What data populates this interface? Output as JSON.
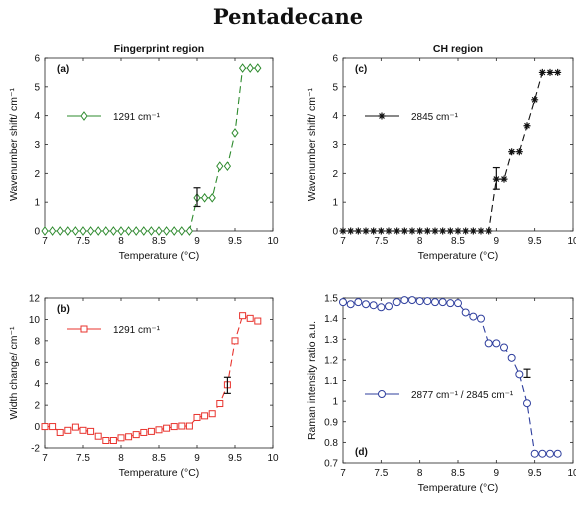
{
  "figure_title": "Pentadecane",
  "chart_data": [
    {
      "id": "a",
      "type": "line",
      "panel_label": "(a)",
      "title": "Fingerprint region",
      "xlabel": "Temperature (°C)",
      "ylabel": "Wavenumber shift/ cm⁻¹",
      "xlim": [
        7,
        10
      ],
      "ylim": [
        0,
        6
      ],
      "xticks": [
        7,
        7.5,
        8,
        8.5,
        9,
        9.5,
        10
      ],
      "xticklabels": [
        "7",
        "7.5",
        "8",
        "8.5",
        "9",
        "9.5",
        "10"
      ],
      "yticks": [
        0,
        1,
        2,
        3,
        4,
        5,
        6
      ],
      "yticklabels": [
        "0",
        "1",
        "2",
        "3",
        "4",
        "5",
        "6"
      ],
      "grid": false,
      "legend_position": "upper-left",
      "color": "#2e8b2e",
      "marker": "diamond",
      "series": [
        {
          "name": "1291 cm⁻¹",
          "x": [
            7.0,
            7.1,
            7.2,
            7.3,
            7.4,
            7.5,
            7.6,
            7.7,
            7.8,
            7.9,
            8.0,
            8.1,
            8.2,
            8.3,
            8.4,
            8.5,
            8.6,
            8.7,
            8.8,
            8.9,
            9.0,
            9.1,
            9.2,
            9.3,
            9.4,
            9.5,
            9.6,
            9.7,
            9.8
          ],
          "y": [
            0,
            0,
            0,
            0,
            0,
            0,
            0,
            0,
            0,
            0,
            0,
            0,
            0,
            0,
            0,
            0,
            0,
            0,
            0,
            0,
            1.15,
            1.15,
            1.15,
            2.25,
            2.25,
            3.4,
            5.65,
            5.65,
            5.65
          ]
        }
      ],
      "error_bar": {
        "x": 9.0,
        "low": 0.85,
        "high": 1.5
      }
    },
    {
      "id": "c",
      "type": "line",
      "panel_label": "(c)",
      "title": "CH region",
      "xlabel": "Temperature (°C)",
      "ylabel": "Wavenumber shift/ cm⁻¹",
      "xlim": [
        7,
        10
      ],
      "ylim": [
        0,
        6
      ],
      "xticks": [
        7,
        7.5,
        8,
        8.5,
        9,
        9.5,
        10
      ],
      "xticklabels": [
        "7",
        "7.5",
        "8",
        "8.5",
        "9",
        "9.5",
        "10"
      ],
      "yticks": [
        0,
        1,
        2,
        3,
        4,
        5,
        6
      ],
      "yticklabels": [
        "0",
        "1",
        "2",
        "3",
        "4",
        "5",
        "6"
      ],
      "grid": false,
      "legend_position": "upper-left",
      "color": "#111111",
      "marker": "asterisk",
      "series": [
        {
          "name": "2845 cm⁻¹",
          "x": [
            7.0,
            7.1,
            7.2,
            7.3,
            7.4,
            7.5,
            7.6,
            7.7,
            7.8,
            7.9,
            8.0,
            8.1,
            8.2,
            8.3,
            8.4,
            8.5,
            8.6,
            8.7,
            8.8,
            8.9,
            9.0,
            9.1,
            9.2,
            9.3,
            9.4,
            9.5,
            9.6,
            9.7,
            9.8
          ],
          "y": [
            0,
            0,
            0,
            0,
            0,
            0,
            0,
            0,
            0,
            0,
            0,
            0,
            0,
            0,
            0,
            0,
            0,
            0,
            0,
            0,
            1.8,
            1.8,
            2.75,
            2.75,
            3.65,
            4.55,
            5.5,
            5.5,
            5.5
          ]
        }
      ],
      "error_bar": {
        "x": 9.0,
        "low": 1.45,
        "high": 2.2
      }
    },
    {
      "id": "b",
      "type": "line",
      "panel_label": "(b)",
      "title": "",
      "xlabel": "Temperature (°C)",
      "ylabel": "Width change/ cm⁻¹",
      "xlim": [
        7,
        10
      ],
      "ylim": [
        -2,
        12
      ],
      "xticks": [
        7,
        7.5,
        8,
        8.5,
        9,
        9.5,
        10
      ],
      "xticklabels": [
        "7",
        "7.5",
        "8",
        "8.5",
        "9",
        "9.5",
        "10"
      ],
      "yticks": [
        -2,
        0,
        2,
        4,
        6,
        8,
        10,
        12
      ],
      "yticklabels": [
        "-2",
        "0",
        "2",
        "4",
        "6",
        "8",
        "10",
        "12"
      ],
      "grid": false,
      "legend_position": "upper-left",
      "color": "#e8332d",
      "marker": "square",
      "series": [
        {
          "name": "1291 cm⁻¹",
          "x": [
            7.0,
            7.1,
            7.2,
            7.3,
            7.4,
            7.5,
            7.6,
            7.7,
            7.8,
            7.9,
            8.0,
            8.1,
            8.2,
            8.3,
            8.4,
            8.5,
            8.6,
            8.7,
            8.8,
            8.9,
            9.0,
            9.1,
            9.2,
            9.3,
            9.4,
            9.5,
            9.6,
            9.7,
            9.8
          ],
          "y": [
            0.0,
            0.0,
            -0.55,
            -0.35,
            -0.05,
            -0.35,
            -0.45,
            -0.9,
            -1.3,
            -1.3,
            -1.05,
            -0.95,
            -0.75,
            -0.55,
            -0.45,
            -0.3,
            -0.15,
            0.0,
            0.05,
            0.05,
            0.85,
            1.0,
            1.2,
            2.15,
            3.9,
            8.0,
            10.35,
            10.1,
            9.85
          ]
        }
      ],
      "error_bar": {
        "x": 9.4,
        "low": 3.1,
        "high": 4.6
      }
    },
    {
      "id": "d",
      "type": "line",
      "panel_label": "(d)",
      "title": "",
      "xlabel": "Temperature (°C)",
      "ylabel": "Raman intensity ratio a.u.",
      "xlim": [
        7,
        10
      ],
      "ylim": [
        0.7,
        1.5
      ],
      "xticks": [
        7,
        7.5,
        8,
        8.5,
        9,
        9.5,
        10
      ],
      "xticklabels": [
        "7",
        "7.5",
        "8",
        "8.5",
        "9",
        "9.5",
        "10"
      ],
      "yticks": [
        0.7,
        0.8,
        0.9,
        1.0,
        1.1,
        1.2,
        1.3,
        1.4,
        1.5
      ],
      "yticklabels": [
        "0.7",
        "0.8",
        "0.9",
        "1",
        "1.1",
        "1.2",
        "1.3",
        "1.4",
        "1.5"
      ],
      "grid": false,
      "legend_position": "center-left",
      "color": "#2f3f9e",
      "marker": "circle",
      "series": [
        {
          "name": "2877 cm⁻¹ / 2845 cm⁻¹",
          "x": [
            7.0,
            7.1,
            7.2,
            7.3,
            7.4,
            7.5,
            7.6,
            7.7,
            7.8,
            7.9,
            8.0,
            8.1,
            8.2,
            8.3,
            8.4,
            8.5,
            8.6,
            8.7,
            8.8,
            8.9,
            9.0,
            9.1,
            9.2,
            9.3,
            9.4,
            9.5,
            9.6,
            9.7,
            9.8
          ],
          "y": [
            1.48,
            1.47,
            1.48,
            1.47,
            1.465,
            1.455,
            1.46,
            1.48,
            1.49,
            1.49,
            1.485,
            1.485,
            1.48,
            1.48,
            1.475,
            1.475,
            1.43,
            1.41,
            1.4,
            1.28,
            1.28,
            1.26,
            1.21,
            1.13,
            0.99,
            0.745,
            0.745,
            0.745,
            0.745
          ]
        }
      ],
      "error_bar": {
        "x": 9.4,
        "low": 1.115,
        "high": 1.155
      }
    }
  ]
}
